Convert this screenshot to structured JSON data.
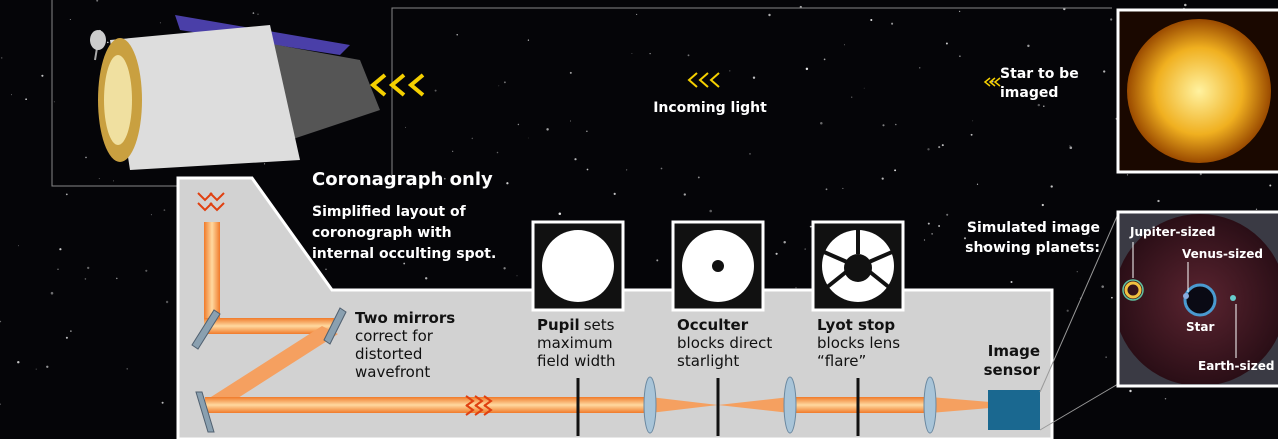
{
  "sky": {
    "incoming_light": "Incoming light",
    "star_label": [
      "Star to be",
      "imaged"
    ]
  },
  "coronagraph": {
    "title": "Coronagraph only",
    "description": [
      "Simplified layout of",
      "coronograph with",
      "internal occulting spot."
    ]
  },
  "components": [
    {
      "name": "Two mirrors",
      "description": [
        "correct for",
        "distorted",
        "wavefront"
      ]
    },
    {
      "name": "Pupil",
      "description": [
        "sets",
        "maximum",
        "field width"
      ]
    },
    {
      "name": "Occulter",
      "description": [
        "blocks direct",
        "starlight"
      ]
    },
    {
      "name": "Lyot stop",
      "description": [
        "blocks lens",
        "“flare”"
      ]
    },
    {
      "name": "Image",
      "description": [
        "sensor"
      ]
    }
  ],
  "simulated_image": {
    "caption": [
      "Simulated image",
      "showing planets:"
    ],
    "labels": [
      "Jupiter-sized",
      "Venus-sized",
      "Star",
      "Earth-sized"
    ]
  }
}
